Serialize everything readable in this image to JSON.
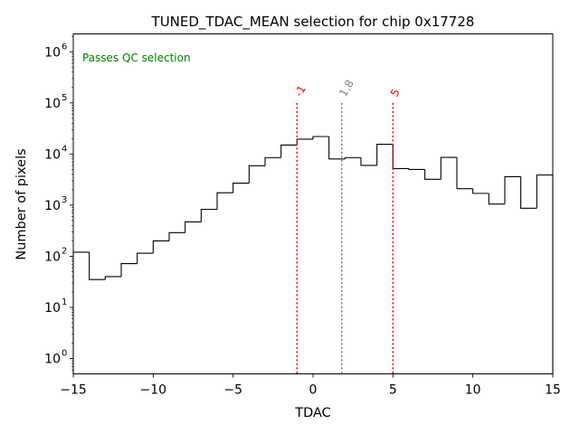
{
  "chart_data": {
    "type": "histogram",
    "title": "TUNED_TDAC_MEAN selection for chip 0x17728",
    "xlabel": "TDAC",
    "ylabel": "Number of pixels",
    "xlim": [
      -15,
      15
    ],
    "ylim_log10": [
      -0.3,
      6.35
    ],
    "yscale": "log",
    "annotation": "Passes QC selection",
    "annotation_color": "#008000",
    "bin_edges": [
      -15,
      -14,
      -13,
      -12,
      -11,
      -10,
      -9,
      -8,
      -7,
      -6,
      -5,
      -4,
      -3,
      -2,
      -1,
      0,
      1,
      2,
      3,
      4,
      5,
      6,
      7,
      8,
      9,
      10,
      11,
      12,
      13,
      14,
      15
    ],
    "counts": [
      120,
      35,
      40,
      72,
      115,
      200,
      290,
      470,
      830,
      1750,
      2700,
      5900,
      8500,
      15000,
      19500,
      22000,
      8000,
      8500,
      6000,
      15500,
      5200,
      5000,
      3200,
      8600,
      2100,
      1700,
      1050,
      3600,
      870,
      3900
    ],
    "xticks": [
      -15,
      -10,
      -5,
      0,
      5,
      10,
      15
    ],
    "xtick_labels": [
      "−15",
      "−10",
      "−5",
      "0",
      "5",
      "10",
      "15"
    ],
    "yticks_exp": [
      0,
      1,
      2,
      3,
      4,
      5,
      6
    ],
    "ytick_labels": [
      "10",
      "10",
      "10",
      "10",
      "10",
      "10",
      "10"
    ],
    "ytick_sup": [
      "0",
      "1",
      "2",
      "3",
      "4",
      "5",
      "6"
    ],
    "vlines": [
      {
        "x": -1,
        "label": "-1",
        "color": "#ff0000"
      },
      {
        "x": 1.8,
        "label": "1.8",
        "color": "#808080"
      },
      {
        "x": 5,
        "label": "5",
        "color": "#ff0000"
      }
    ],
    "vline_top_value": 100000,
    "line_color": "#000000"
  }
}
